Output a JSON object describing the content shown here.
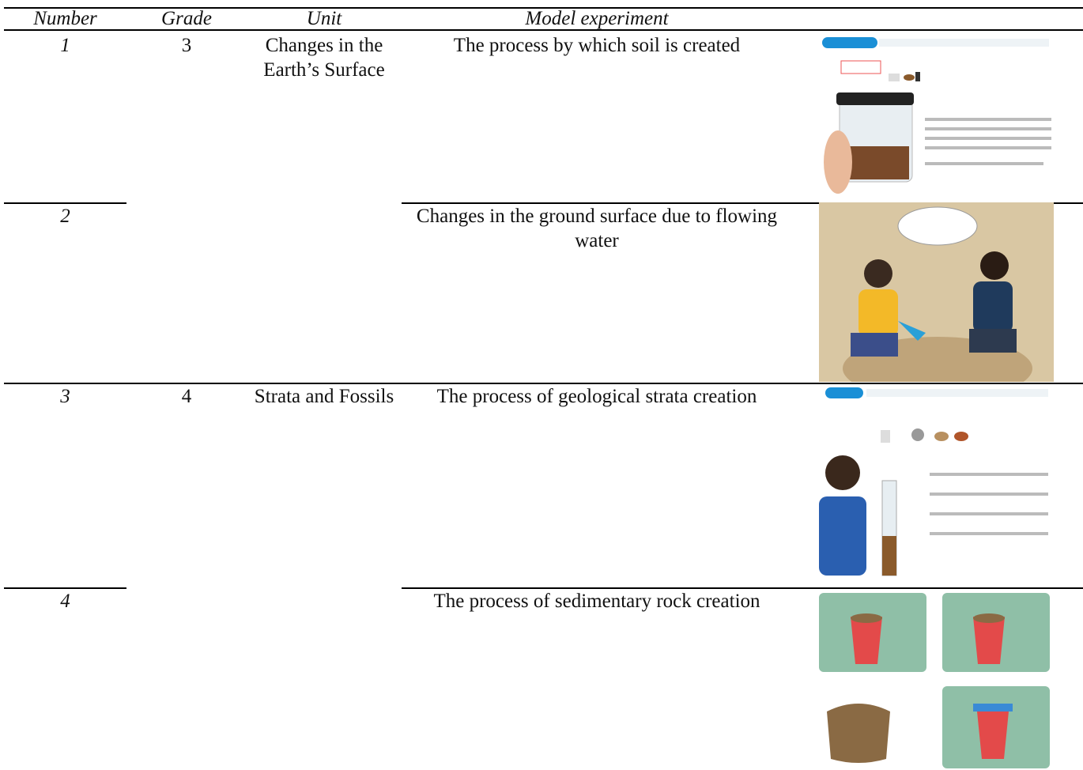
{
  "table": {
    "headers": [
      "Number",
      "Grade",
      "Unit",
      "Model experiment"
    ],
    "rows": [
      {
        "number": "1",
        "grade": "3",
        "unit": "Changes in the Earth’s Surface",
        "experiment": "The process by which soil is created"
      },
      {
        "number": "2",
        "experiment": "Changes in the ground surface due to flowing water"
      },
      {
        "number": "3",
        "grade": "4",
        "unit": "Strata and Fossils",
        "experiment": "The process of geological strata creation"
      },
      {
        "number": "4",
        "experiment": "The process of sedimentary rock creation"
      }
    ]
  }
}
